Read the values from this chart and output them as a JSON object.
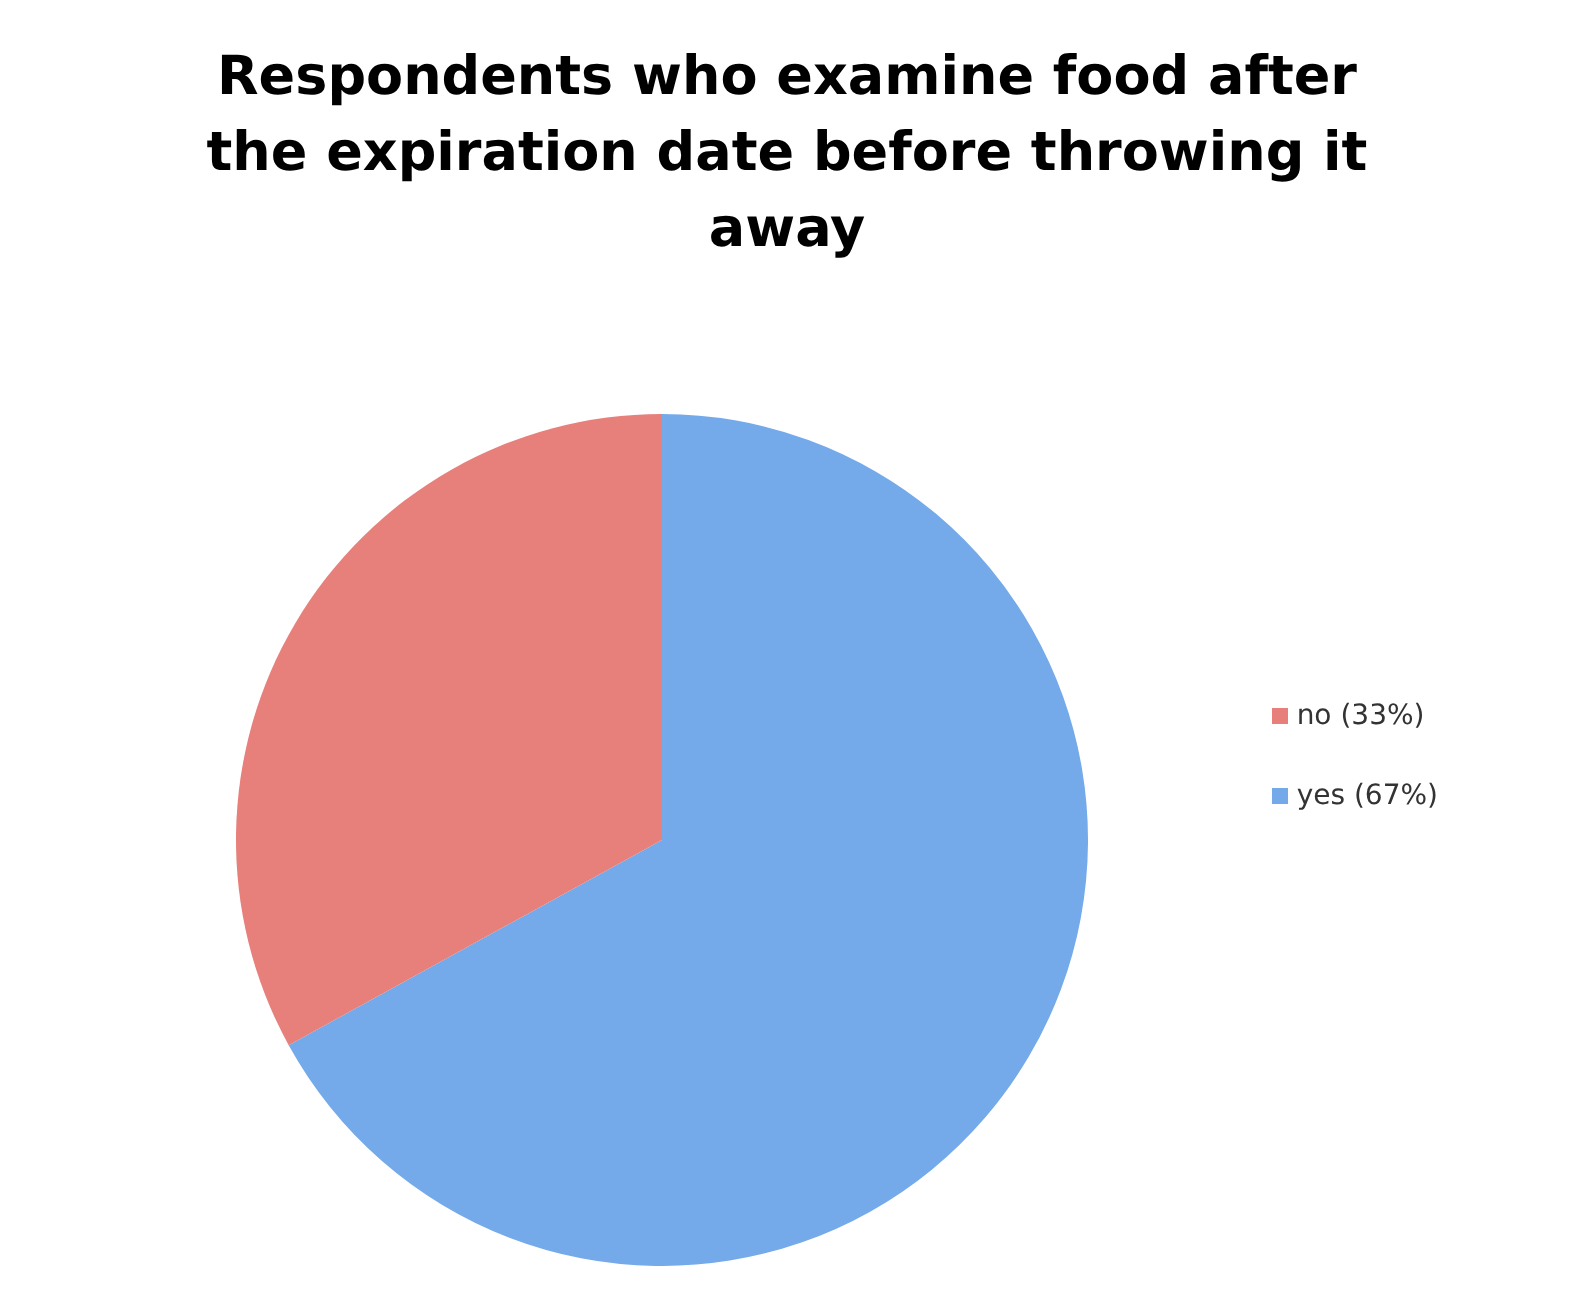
{
  "chart_data": {
    "type": "pie",
    "title": "Respondents who examine food after the expiration date before throwing it away",
    "categories": [
      "yes (67%)",
      "no (33%)"
    ],
    "values": [
      67,
      33
    ],
    "colors": [
      "#74a9ea",
      "#e77f7a"
    ],
    "legend": "right"
  }
}
